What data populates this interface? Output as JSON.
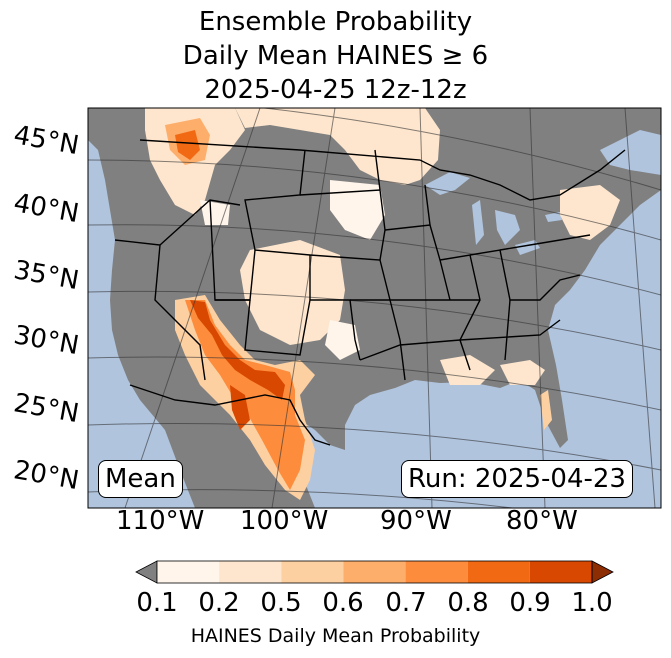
{
  "title": {
    "line1": "Ensemble Probability",
    "line2": "Daily Mean HAINES ≥ 6",
    "line3": "2025-04-25 12z-12z"
  },
  "map": {
    "lat_labels": [
      "45°N",
      "40°N",
      "35°N",
      "30°N",
      "25°N",
      "20°N"
    ],
    "lon_labels": [
      "110°W",
      "100°W",
      "90°W",
      "80°W"
    ],
    "mean_label": "Mean",
    "run_label": "Run: 2025-04-23",
    "colors": {
      "ocean": "#b0c4de",
      "land_below": "#808080",
      "border": "#000000",
      "grid": "#333333"
    }
  },
  "colorbar": {
    "ticks": [
      "0.1",
      "0.2",
      "0.5",
      "0.6",
      "0.7",
      "0.8",
      "0.9",
      "1.0"
    ],
    "label": "HAINES Daily Mean Probability",
    "colors": [
      "#fff5eb",
      "#fee6ce",
      "#fdd0a2",
      "#fdae6b",
      "#fd8d3c",
      "#f16913",
      "#d94801",
      "#8c2d04"
    ],
    "under_color": "#808080"
  }
}
